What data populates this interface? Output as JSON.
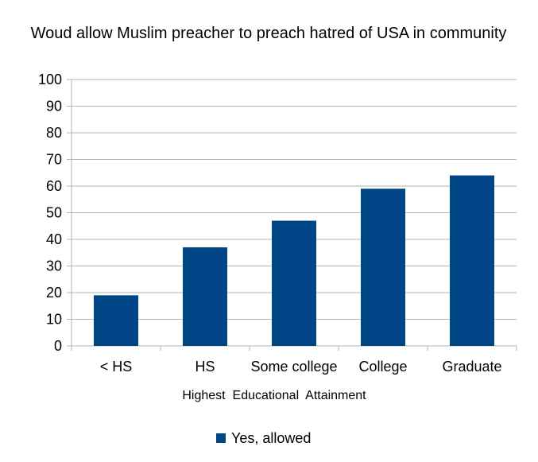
{
  "chart_data": {
    "type": "bar",
    "title": "Woud allow Muslim preacher to preach hatred of USA in community",
    "xlabel": "Highest  Educational  Attainment",
    "ylabel": "",
    "categories": [
      "< HS",
      "HS",
      "Some college",
      "College",
      "Graduate"
    ],
    "series": [
      {
        "name": "Yes, allowed",
        "values": [
          19,
          37,
          47,
          59,
          64
        ]
      }
    ],
    "ylim": [
      0,
      100
    ],
    "yticks": [
      0,
      10,
      20,
      30,
      40,
      50,
      60,
      70,
      80,
      90,
      100
    ],
    "grid": true,
    "legend_position": "bottom",
    "colors": {
      "bar": "#004586",
      "grid": "#b3b3b3",
      "axis": "#b3b3b3"
    }
  }
}
